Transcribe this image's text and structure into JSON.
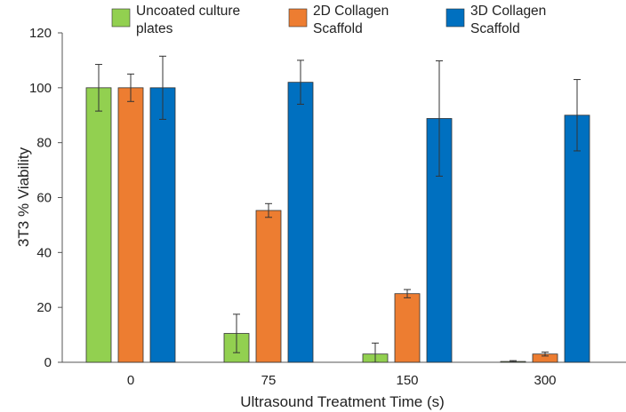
{
  "chart_data": {
    "type": "bar",
    "title": "",
    "xlabel": "Ultrasound Treatment Time (s)",
    "ylabel": "3T3 % Viability",
    "ylim": [
      0,
      120
    ],
    "yticks": [
      "0",
      "20",
      "40",
      "60",
      "80",
      "100",
      "120"
    ],
    "categories": [
      "0",
      "75",
      "150",
      "300"
    ],
    "series": [
      {
        "name": "Uncoated culture plates",
        "legend_lines": [
          "Uncoated culture",
          "plates"
        ],
        "color": "#92d050",
        "values": [
          100,
          10.5,
          3,
          0.3
        ],
        "errors": [
          8.5,
          7,
          4,
          0.3
        ]
      },
      {
        "name": "2D Collagen Scaffold",
        "legend_lines": [
          "2D Collagen",
          "Scaffold"
        ],
        "color": "#ed7d31",
        "values": [
          100,
          55.3,
          25,
          3
        ],
        "errors": [
          5,
          2.5,
          1.5,
          0.7
        ]
      },
      {
        "name": "3D Collagen Scaffold",
        "legend_lines": [
          "3D Collagen",
          "Scaffold"
        ],
        "color": "#0070c0",
        "values": [
          100,
          102,
          88.8,
          90
        ],
        "errors": [
          11.5,
          8,
          21,
          13
        ]
      }
    ],
    "grid": false,
    "legend_position": "top"
  }
}
